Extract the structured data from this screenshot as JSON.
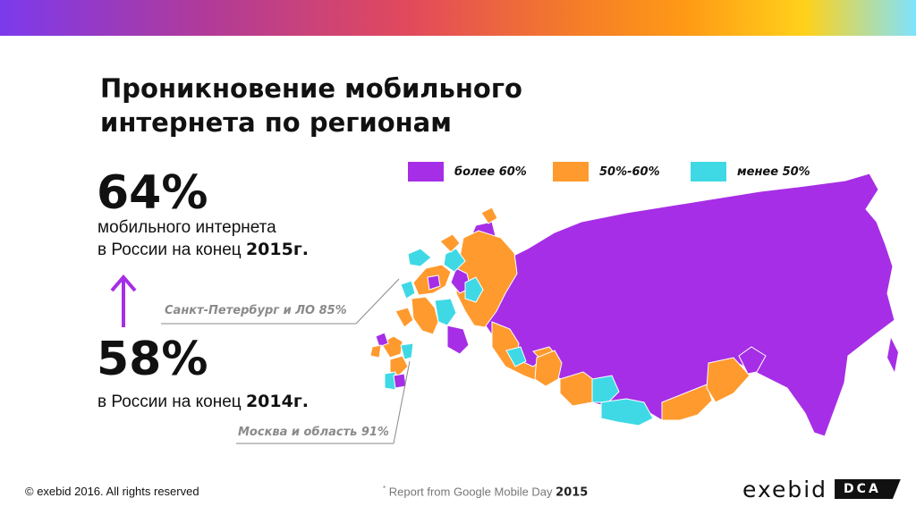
{
  "title": {
    "line1": "Проникновение мобильного",
    "line2": "интернета по регионам"
  },
  "stat_2015": {
    "value": "64%",
    "line1": "мобильного интернета",
    "line2_prefix": "в России на конец ",
    "year": "2015г."
  },
  "stat_2014": {
    "value": "58%",
    "line_prefix": "в России на конец ",
    "year": "2014г."
  },
  "legend": [
    {
      "label": "более 60%",
      "color": "#a62ee6"
    },
    {
      "label": "50%-60%",
      "color": "#ff9a2e"
    },
    {
      "label": "менее 50%",
      "color": "#3fd9e6"
    }
  ],
  "callouts": {
    "spb": "Санкт-Петербург и ЛО 85%",
    "moscow": "Москва и область 91%"
  },
  "footer": {
    "copyright": "© exebid 2016. All rights reserved",
    "report_mark": "*",
    "report_text": " Report from Google Mobile Day ",
    "report_year": "2015"
  },
  "logo": {
    "word": "exebid",
    "badge": "DCA"
  }
}
